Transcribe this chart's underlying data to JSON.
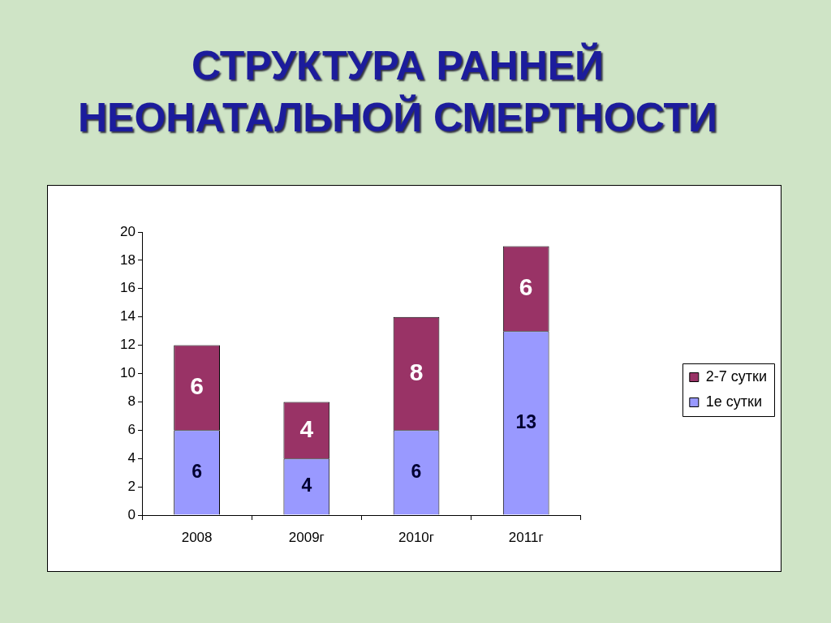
{
  "chart_data": {
    "type": "bar",
    "title": "СТРУКТУРА РАННЕЙ НЕОНАТАЛЬНОЙ СМЕРТНОСТИ",
    "categories": [
      "2008",
      "2009г",
      "2010г",
      "2011г"
    ],
    "series": [
      {
        "name": "1е сутки",
        "color": "#9999ff",
        "values": [
          6,
          4,
          6,
          13
        ]
      },
      {
        "name": "2-7 сутки",
        "color": "#993366",
        "values": [
          6,
          4,
          8,
          6
        ]
      }
    ],
    "stacked": true,
    "ylim": [
      0,
      20
    ],
    "yticks": [
      0,
      2,
      4,
      6,
      8,
      10,
      12,
      14,
      16,
      18,
      20
    ],
    "legend": "right",
    "data_labels": true
  }
}
